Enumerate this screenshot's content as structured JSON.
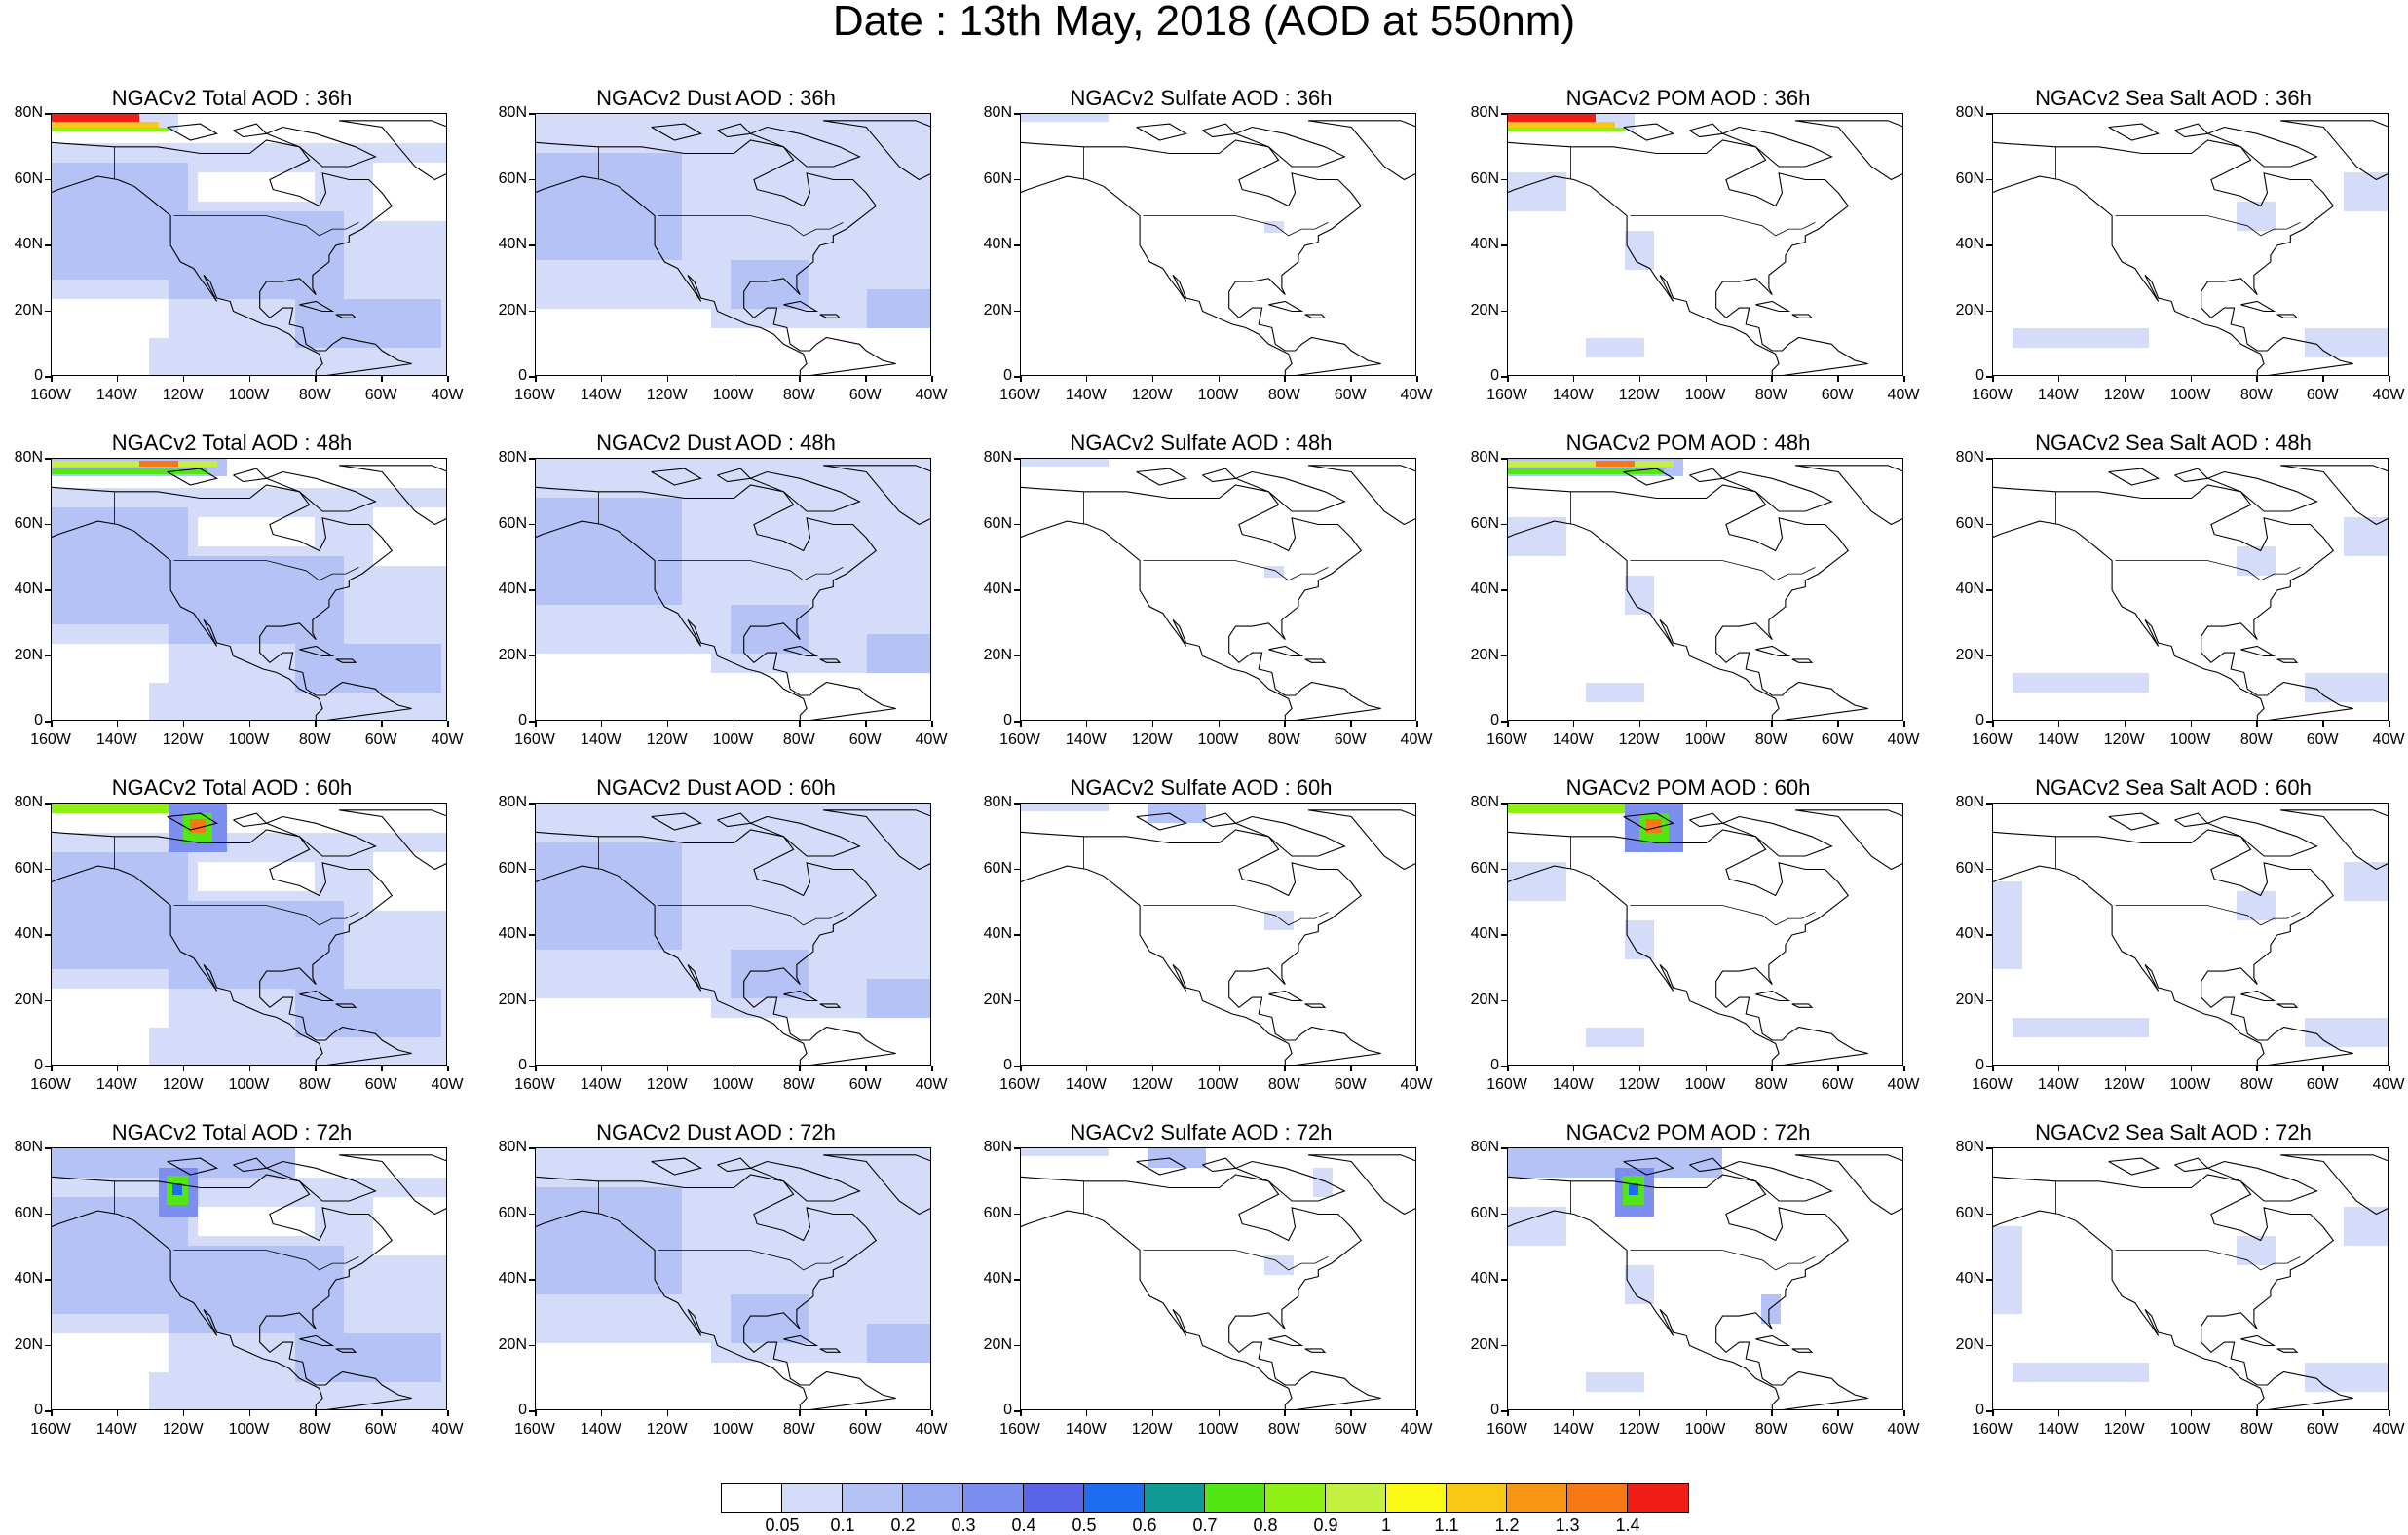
{
  "title": "Date : 13th May, 2018 (AOD at 550nm)",
  "lat_labels": [
    "80N",
    "60N",
    "40N",
    "20N",
    "0"
  ],
  "lon_labels": [
    "160W",
    "140W",
    "120W",
    "100W",
    "80W",
    "60W",
    "40W"
  ],
  "panel_titles": [
    [
      "NGACv2 Total AOD : 36h",
      "NGACv2 Dust AOD : 36h",
      "NGACv2 Sulfate AOD : 36h",
      "NGACv2 POM AOD : 36h",
      "NGACv2 Sea Salt AOD : 36h"
    ],
    [
      "NGACv2 Total AOD : 48h",
      "NGACv2 Dust AOD : 48h",
      "NGACv2 Sulfate AOD : 48h",
      "NGACv2 POM AOD : 48h",
      "NGACv2 Sea Salt AOD : 48h"
    ],
    [
      "NGACv2 Total AOD : 60h",
      "NGACv2 Dust AOD : 60h",
      "NGACv2 Sulfate AOD : 60h",
      "NGACv2 POM AOD : 60h",
      "NGACv2 Sea Salt AOD : 60h"
    ],
    [
      "NGACv2 Total AOD : 72h",
      "NGACv2 Dust AOD : 72h",
      "NGACv2 Sulfate AOD : 72h",
      "NGACv2 POM AOD : 72h",
      "NGACv2 Sea Salt  AOD : 72h"
    ]
  ],
  "colorbar": {
    "labels": [
      "0.05",
      "0.1",
      "0.2",
      "0.3",
      "0.4",
      "0.5",
      "0.6",
      "0.7",
      "0.8",
      "0.9",
      "1",
      "1.1",
      "1.2",
      "1.3",
      "1.4"
    ],
    "colors": [
      "#ffffff",
      "#d4dcf9",
      "#b4c2f6",
      "#98aaf4",
      "#7c8ef0",
      "#5a64e8",
      "#1e6cf0",
      "#0f9a96",
      "#52e614",
      "#8ef014",
      "#c4f040",
      "#fafa14",
      "#f8c814",
      "#f89614",
      "#f87814",
      "#f01e14"
    ]
  }
}
